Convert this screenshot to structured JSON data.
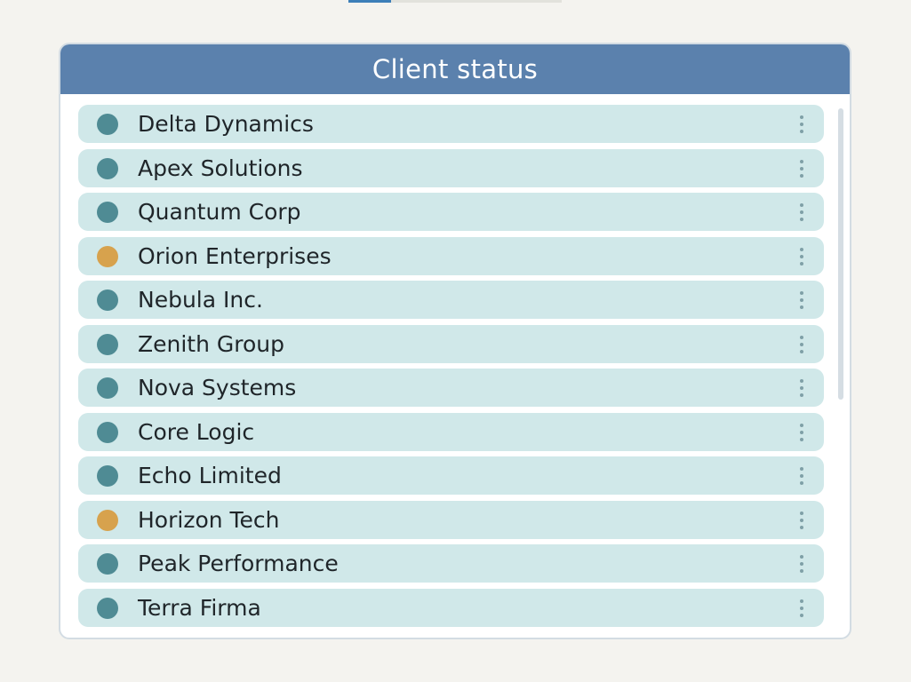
{
  "panel": {
    "title": "Client status"
  },
  "status_colors": {
    "active": "#4f8b94",
    "warning": "#d7a24d"
  },
  "clients": [
    {
      "name": "Delta Dynamics",
      "status": "active"
    },
    {
      "name": "Apex Solutions",
      "status": "active"
    },
    {
      "name": "Quantum Corp",
      "status": "active"
    },
    {
      "name": "Orion Enterprises",
      "status": "warning"
    },
    {
      "name": "Nebula Inc.",
      "status": "active"
    },
    {
      "name": "Zenith Group",
      "status": "active"
    },
    {
      "name": "Nova Systems",
      "status": "active"
    },
    {
      "name": "Core Logic",
      "status": "active"
    },
    {
      "name": "Echo Limited",
      "status": "active"
    },
    {
      "name": "Horizon Tech",
      "status": "warning"
    },
    {
      "name": "Peak Performance",
      "status": "active"
    },
    {
      "name": "Terra Firma",
      "status": "active"
    }
  ],
  "icons": {
    "row_menu": "more-vertical-icon",
    "status": "status-dot-icon"
  }
}
